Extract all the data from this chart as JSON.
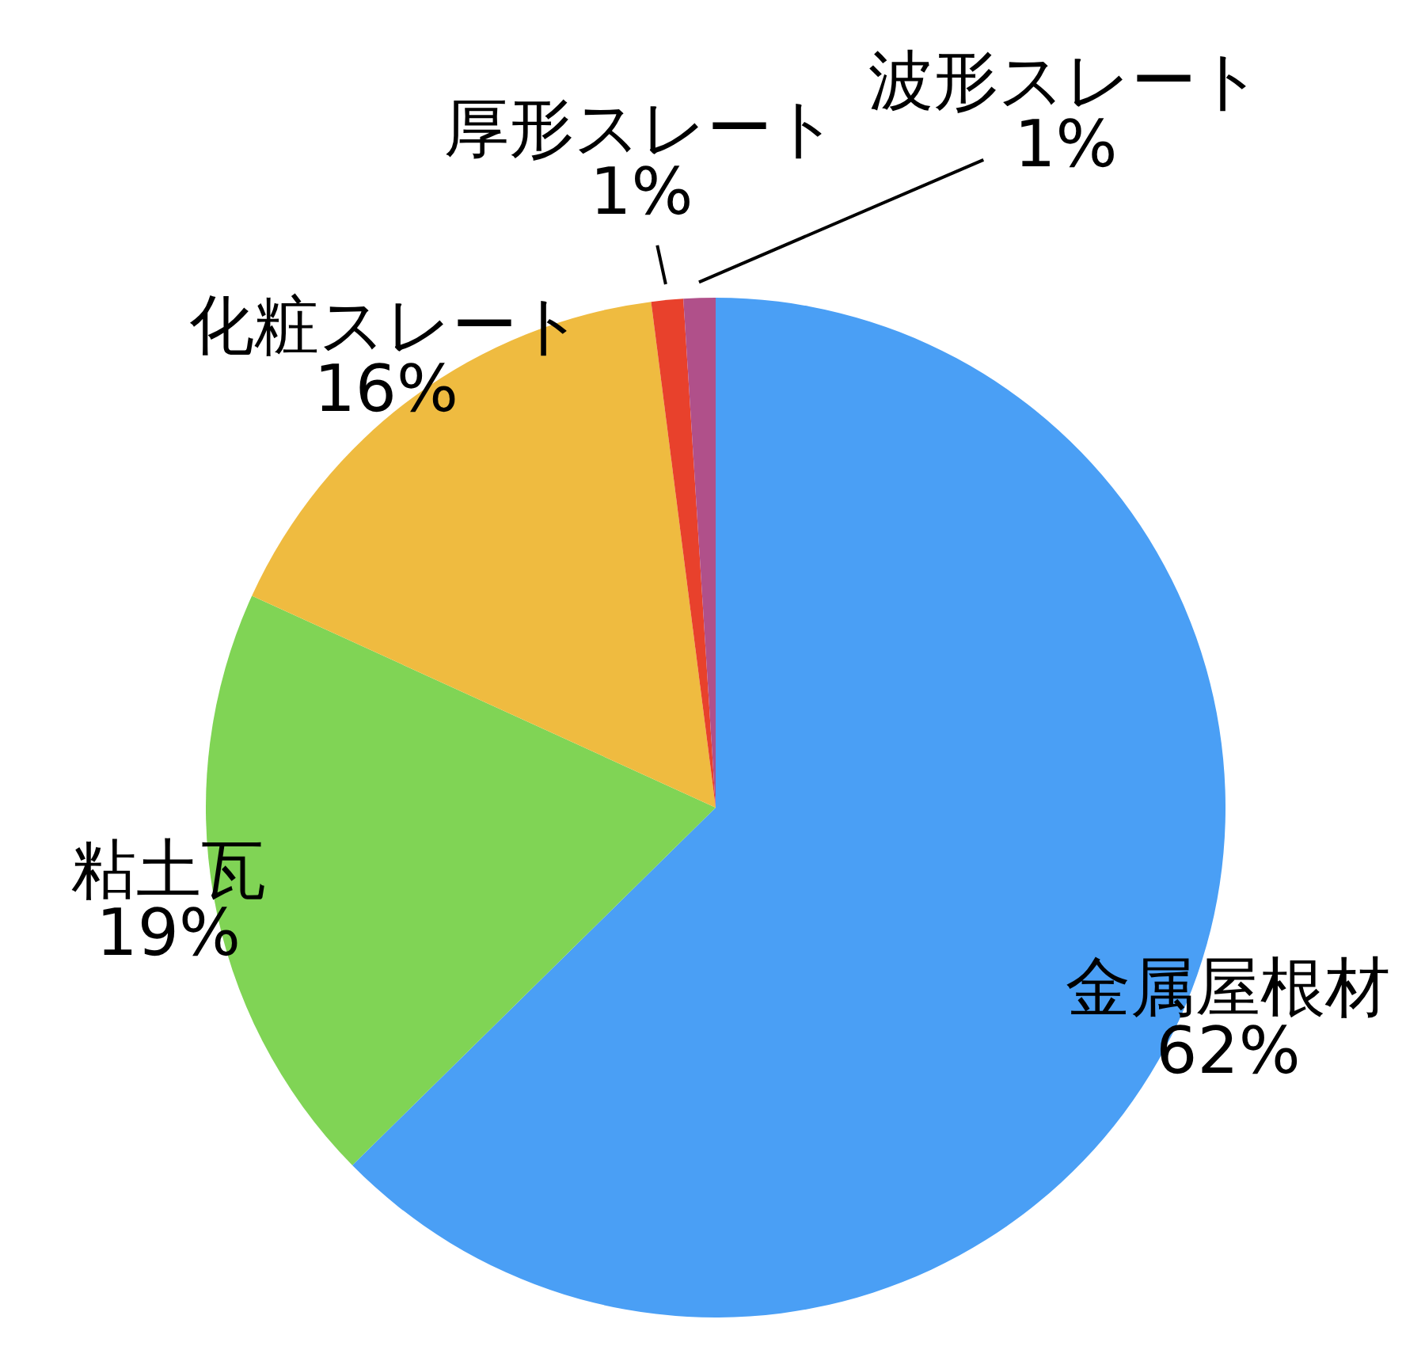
{
  "chart_data": {
    "type": "pie",
    "categories": [
      "金属屋根材",
      "粘土瓦",
      "化粧スレート",
      "厚形スレート",
      "波形スレート"
    ],
    "values": [
      62,
      19,
      16,
      1,
      1
    ],
    "value_labels": [
      "62%",
      "19%",
      "16%",
      "1%",
      "1%"
    ],
    "colors": [
      "#4a9ff5",
      "#80d455",
      "#efbb40",
      "#e8412c",
      "#b0508a"
    ]
  }
}
